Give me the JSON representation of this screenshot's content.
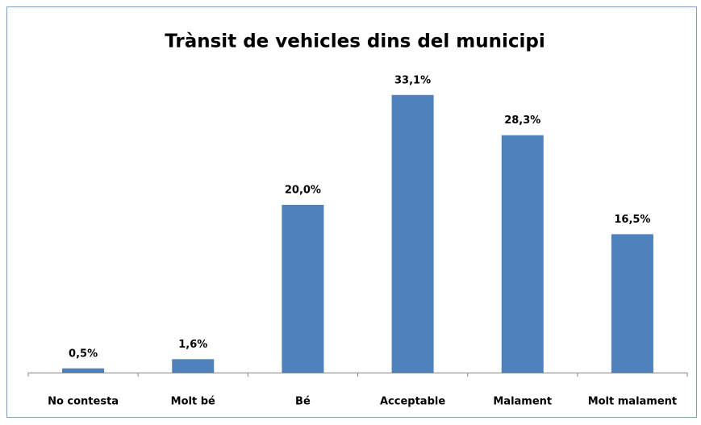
{
  "chart_data": {
    "type": "bar",
    "title": "Trànsit de vehicles dins del municipi",
    "categories": [
      "No contesta",
      "Molt bé",
      "Bé",
      "Acceptable",
      "Malament",
      "Molt malament"
    ],
    "values": [
      0.5,
      1.6,
      20.0,
      33.1,
      28.3,
      16.5
    ],
    "value_labels": [
      "0,5%",
      "1,6%",
      "20,0%",
      "33,1%",
      "28,3%",
      "16,5%"
    ],
    "color": "#4f81bd"
  }
}
